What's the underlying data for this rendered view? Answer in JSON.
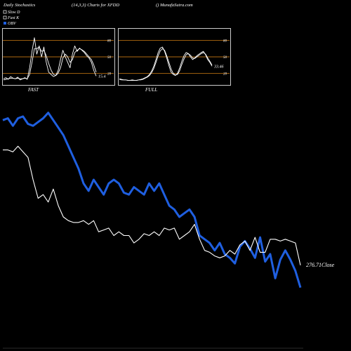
{
  "header": {
    "left": "Daily Stochastics",
    "middle": "(14,3,3) Charts for XFDD",
    "right": "() MunafaSutra.com"
  },
  "legend": [
    {
      "label": "Slow  D",
      "color": "#ffffff",
      "boxed": true
    },
    {
      "label": "Fast K",
      "color": "#ffffff",
      "boxed": true
    },
    {
      "label": "OBV",
      "color": "#1f5fe0",
      "boxed": false
    }
  ],
  "colors": {
    "background": "#000000",
    "panel_border": "#ffffff",
    "level_line": "#b06a10",
    "obv_line": "#1f5fe0",
    "close_line": "#ffffff"
  },
  "chart_data": [
    {
      "type": "line",
      "panel": "FAST",
      "xlabel": "FAST",
      "ylim": [
        0,
        100
      ],
      "levels": [
        20,
        50,
        80
      ],
      "level_labels": [
        "20",
        "50",
        "80"
      ],
      "last_value_label": "15.4",
      "series": [
        {
          "values": [
            10,
            12,
            9,
            14,
            11,
            10,
            13,
            8,
            10,
            12,
            9,
            30,
            60,
            85,
            55,
            70,
            50,
            68,
            40,
            22,
            18,
            14,
            16,
            25,
            45,
            62,
            50,
            40,
            30,
            55,
            70,
            60,
            66,
            62,
            58,
            52,
            48,
            40,
            25,
            15
          ]
        },
        {
          "values": [
            8,
            9,
            10,
            11,
            11,
            10,
            11,
            10,
            10,
            11,
            10,
            18,
            40,
            65,
            65,
            68,
            60,
            62,
            52,
            38,
            26,
            18,
            16,
            20,
            30,
            48,
            55,
            50,
            40,
            45,
            58,
            62,
            65,
            63,
            60,
            55,
            50,
            45,
            35,
            22
          ]
        }
      ]
    },
    {
      "type": "line",
      "panel": "FULL",
      "xlabel": "FULL",
      "ylim": [
        0,
        100
      ],
      "levels": [
        20,
        50,
        80
      ],
      "level_labels": [
        "20",
        "50",
        "80"
      ],
      "last_value_label": "33.46",
      "series": [
        {
          "values": [
            10,
            9,
            8,
            8,
            7,
            7,
            8,
            7,
            7,
            8,
            9,
            10,
            12,
            14,
            18,
            24,
            33,
            45,
            58,
            66,
            68,
            60,
            48,
            34,
            22,
            18,
            16,
            20,
            30,
            42,
            52,
            58,
            56,
            50,
            45,
            48,
            52,
            55,
            58,
            60,
            54,
            45,
            40,
            33
          ]
        },
        {
          "values": [
            9,
            8,
            8,
            8,
            7,
            7,
            7,
            7,
            7,
            8,
            8,
            9,
            11,
            13,
            16,
            21,
            29,
            40,
            52,
            61,
            65,
            62,
            52,
            40,
            28,
            20,
            17,
            18,
            25,
            36,
            46,
            54,
            56,
            53,
            48,
            47,
            50,
            53,
            56,
            58,
            55,
            48,
            42,
            35
          ]
        }
      ]
    },
    {
      "type": "line",
      "panel": "price_obv",
      "ylim": [
        0,
        100
      ],
      "last_value_label": "276.71Close",
      "series": [
        {
          "name": "OBV",
          "values": [
            92,
            93,
            89,
            93,
            94,
            90,
            89,
            91,
            93,
            96,
            92,
            88,
            84,
            78,
            72,
            66,
            58,
            54,
            60,
            56,
            52,
            58,
            60,
            58,
            53,
            52,
            56,
            54,
            52,
            58,
            54,
            58,
            52,
            46,
            44,
            40,
            42,
            44,
            40,
            30,
            28,
            26,
            22,
            26,
            20,
            18,
            15,
            24,
            27,
            23,
            18,
            29,
            16,
            20,
            7,
            17,
            22,
            17,
            11,
            2
          ]
        },
        {
          "name": "Close",
          "values": [
            76,
            76,
            75,
            78,
            75,
            72,
            60,
            50,
            52,
            48,
            55,
            46,
            40,
            38,
            37,
            37,
            38,
            36,
            38,
            32,
            33,
            34,
            30,
            32,
            30,
            30,
            26,
            28,
            31,
            30,
            32,
            30,
            34,
            33,
            34,
            28,
            30,
            32,
            36,
            28,
            22,
            21,
            19,
            18,
            19,
            22,
            20,
            25,
            27,
            22,
            29,
            21,
            21,
            28,
            28,
            27,
            28,
            27,
            26,
            14
          ]
        }
      ]
    }
  ]
}
